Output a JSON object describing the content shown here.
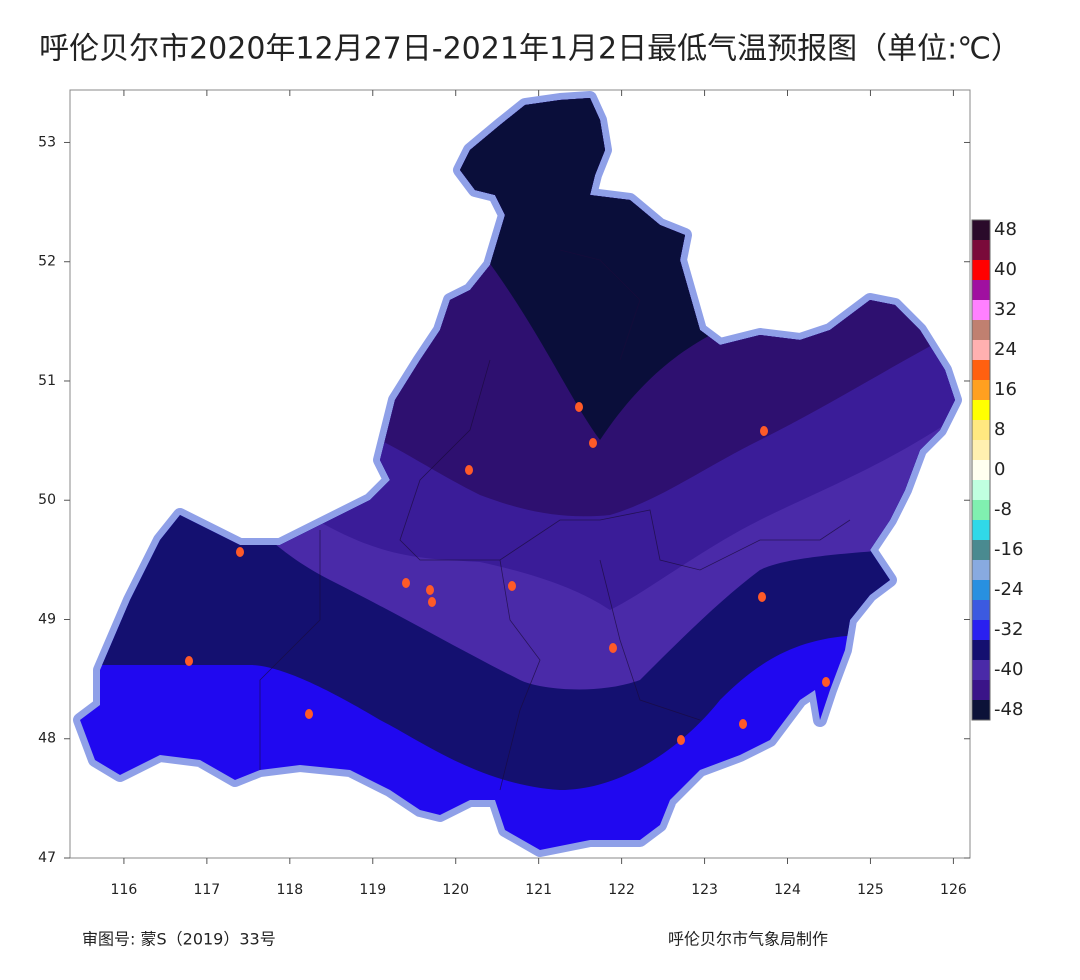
{
  "title": "呼伦贝尔市2020年12月27日-2021年1月2日最低气温预报图（单位:℃）",
  "map": {
    "xlim": [
      115.35,
      126.2
    ],
    "ylim": [
      47,
      53.44
    ],
    "xticks": [
      116,
      117,
      118,
      119,
      120,
      121,
      122,
      123,
      124,
      125,
      126
    ],
    "yticks": [
      47,
      48,
      49,
      50,
      51,
      52,
      53
    ]
  },
  "colorbar": {
    "labels": [
      48,
      40,
      32,
      24,
      16,
      8,
      0,
      -8,
      -16,
      -24,
      -32,
      -40,
      -48
    ],
    "colors": [
      "#2a0a2a",
      "#7a0a3a",
      "#ff0000",
      "#a010a0",
      "#ff80ff",
      "#c08070",
      "#ffb0b0",
      "#ff6010",
      "#ffa020",
      "#ffff00",
      "#ffe880",
      "#fff0b0",
      "#fffff0",
      "#c0ffe0",
      "#80f0b0",
      "#30d8e8",
      "#4a8a90",
      "#88aae0",
      "#2890e0",
      "#3c5ae0",
      "#2a20f0",
      "#141070",
      "#4a2aa8",
      "#3a1488",
      "#0c1238"
    ]
  },
  "footer": {
    "left": "审图号: 蒙S（2019）33号",
    "right": "呼伦贝尔市气象局制作"
  }
}
